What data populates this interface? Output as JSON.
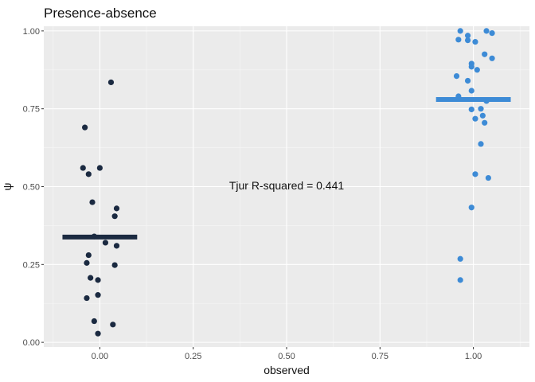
{
  "chart_data": {
    "type": "scatter",
    "title": "Presence-absence",
    "xlabel": "observed",
    "ylabel": "ψ",
    "xlim": [
      -0.15,
      1.15
    ],
    "ylim": [
      -0.015,
      1.015
    ],
    "x_ticks": [
      0.0,
      0.25,
      0.5,
      0.75,
      1.0
    ],
    "x_tick_labels": [
      "0.00",
      "0.25",
      "0.50",
      "0.75",
      "1.00"
    ],
    "y_ticks": [
      0.0,
      0.25,
      0.5,
      0.75,
      1.0
    ],
    "y_tick_labels": [
      "0.00",
      "0.25",
      "0.50",
      "0.75",
      "1.00"
    ],
    "grid": true,
    "annotation": {
      "text": "Tjur R-squared =  0.441",
      "x": 0.5,
      "y": 0.5
    },
    "series": [
      {
        "color": "#1b2a41",
        "mean": 0.338,
        "mean_span": [
          -0.1,
          0.1
        ],
        "points": [
          [
            0.03,
            0.835
          ],
          [
            -0.04,
            0.69
          ],
          [
            -0.045,
            0.56
          ],
          [
            0.0,
            0.56
          ],
          [
            -0.03,
            0.54
          ],
          [
            -0.02,
            0.45
          ],
          [
            0.045,
            0.43
          ],
          [
            0.04,
            0.405
          ],
          [
            -0.015,
            0.34
          ],
          [
            0.015,
            0.32
          ],
          [
            0.045,
            0.31
          ],
          [
            -0.03,
            0.28
          ],
          [
            -0.035,
            0.255
          ],
          [
            0.04,
            0.248
          ],
          [
            -0.025,
            0.207
          ],
          [
            -0.005,
            0.2
          ],
          [
            -0.005,
            0.152
          ],
          [
            -0.035,
            0.142
          ],
          [
            -0.015,
            0.068
          ],
          [
            0.035,
            0.057
          ],
          [
            -0.005,
            0.028
          ]
        ]
      },
      {
        "color": "#3d8bd6",
        "mean": 0.78,
        "mean_span": [
          0.9,
          1.1
        ],
        "points": [
          [
            0.965,
            1.0
          ],
          [
            1.035,
            1.0
          ],
          [
            1.05,
            0.993
          ],
          [
            0.985,
            0.985
          ],
          [
            0.96,
            0.972
          ],
          [
            0.985,
            0.97
          ],
          [
            1.005,
            0.965
          ],
          [
            1.03,
            0.925
          ],
          [
            1.05,
            0.912
          ],
          [
            0.995,
            0.895
          ],
          [
            0.995,
            0.885
          ],
          [
            1.01,
            0.875
          ],
          [
            0.955,
            0.855
          ],
          [
            0.985,
            0.84
          ],
          [
            0.995,
            0.808
          ],
          [
            0.96,
            0.79
          ],
          [
            1.035,
            0.775
          ],
          [
            1.02,
            0.75
          ],
          [
            0.995,
            0.748
          ],
          [
            1.025,
            0.728
          ],
          [
            1.005,
            0.718
          ],
          [
            1.03,
            0.705
          ],
          [
            1.02,
            0.637
          ],
          [
            1.005,
            0.54
          ],
          [
            1.04,
            0.528
          ],
          [
            0.995,
            0.433
          ],
          [
            0.965,
            0.268
          ],
          [
            0.965,
            0.2
          ]
        ]
      }
    ]
  }
}
